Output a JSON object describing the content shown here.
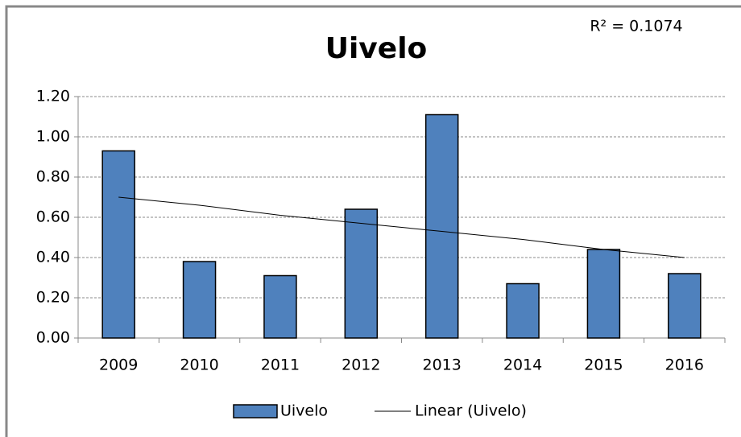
{
  "chart_data": {
    "type": "bar",
    "title": "Uivelo",
    "annotation": "R² = 0.1074",
    "categories": [
      "2009",
      "2010",
      "2011",
      "2012",
      "2013",
      "2014",
      "2015",
      "2016"
    ],
    "series": [
      {
        "name": "Uivelo",
        "color": "#4f81bd",
        "values": [
          0.93,
          0.38,
          0.31,
          0.64,
          1.11,
          0.27,
          0.44,
          0.32
        ]
      }
    ],
    "trendline": {
      "name": "Linear (Uivelo)",
      "color": "#000000",
      "values": [
        0.7,
        0.66,
        0.61,
        0.57,
        0.53,
        0.49,
        0.44,
        0.4
      ]
    },
    "ylim": [
      0,
      1.2
    ],
    "yticks": [
      {
        "value": 0,
        "label": "0.00"
      },
      {
        "value": 0.2,
        "label": "0.20"
      },
      {
        "value": 0.4,
        "label": "0.40"
      },
      {
        "value": 0.6,
        "label": "0.60"
      },
      {
        "value": 0.8,
        "label": "0.80"
      },
      {
        "value": 1.0,
        "label": "1.00"
      },
      {
        "value": 1.2,
        "label": "1.20"
      }
    ],
    "grid": true,
    "legend": "bottom"
  }
}
